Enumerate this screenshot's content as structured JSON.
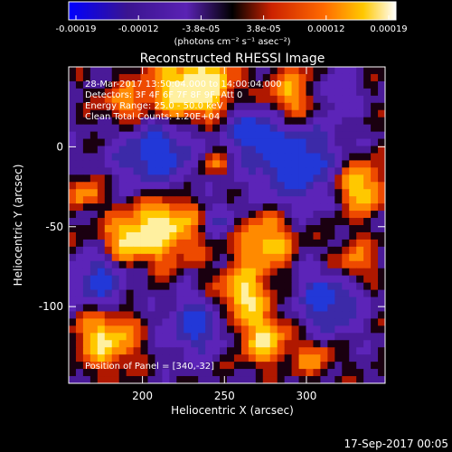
{
  "chart_data": {
    "type": "heatmap",
    "title": "Reconstructed RHESSI Image",
    "xlabel": "Heliocentric X (arcsec)",
    "ylabel": "Heliocentric Y (arcsec)",
    "xlim": [
      155,
      348
    ],
    "ylim": [
      -148,
      50
    ],
    "x_ticks": [
      200,
      250,
      300
    ],
    "y_ticks": [
      0,
      -50,
      -100
    ],
    "colorbar": {
      "range": [
        -0.00019,
        0.00019
      ],
      "tick_labels": [
        "-0.00019",
        "-0.00012",
        "-3.8e-05",
        "3.8e-05",
        "0.00012",
        "0.00019"
      ],
      "units_label": "(photons cm⁻² s⁻¹ asec⁻²)",
      "colors": [
        "#0000ff",
        "#3c1090",
        "#5a1eb4",
        "#000000",
        "#cc2200",
        "#ff6a00",
        "#ffc800",
        "#ffffff"
      ]
    },
    "info_lines": [
      "28-Mar-2017 13:50:04.000 to 14:00:04.000",
      "Detectors: 3F 4F 6F 7F 8F 9F, Att 0",
      "Energy Range: 25.0 - 50.0 keV",
      "Clean    Total Counts: 1.20E+04"
    ],
    "position_label": "Position of Panel = [340,-32]",
    "grid": false
  },
  "footer_timestamp": "17-Sep-2017 00:05"
}
